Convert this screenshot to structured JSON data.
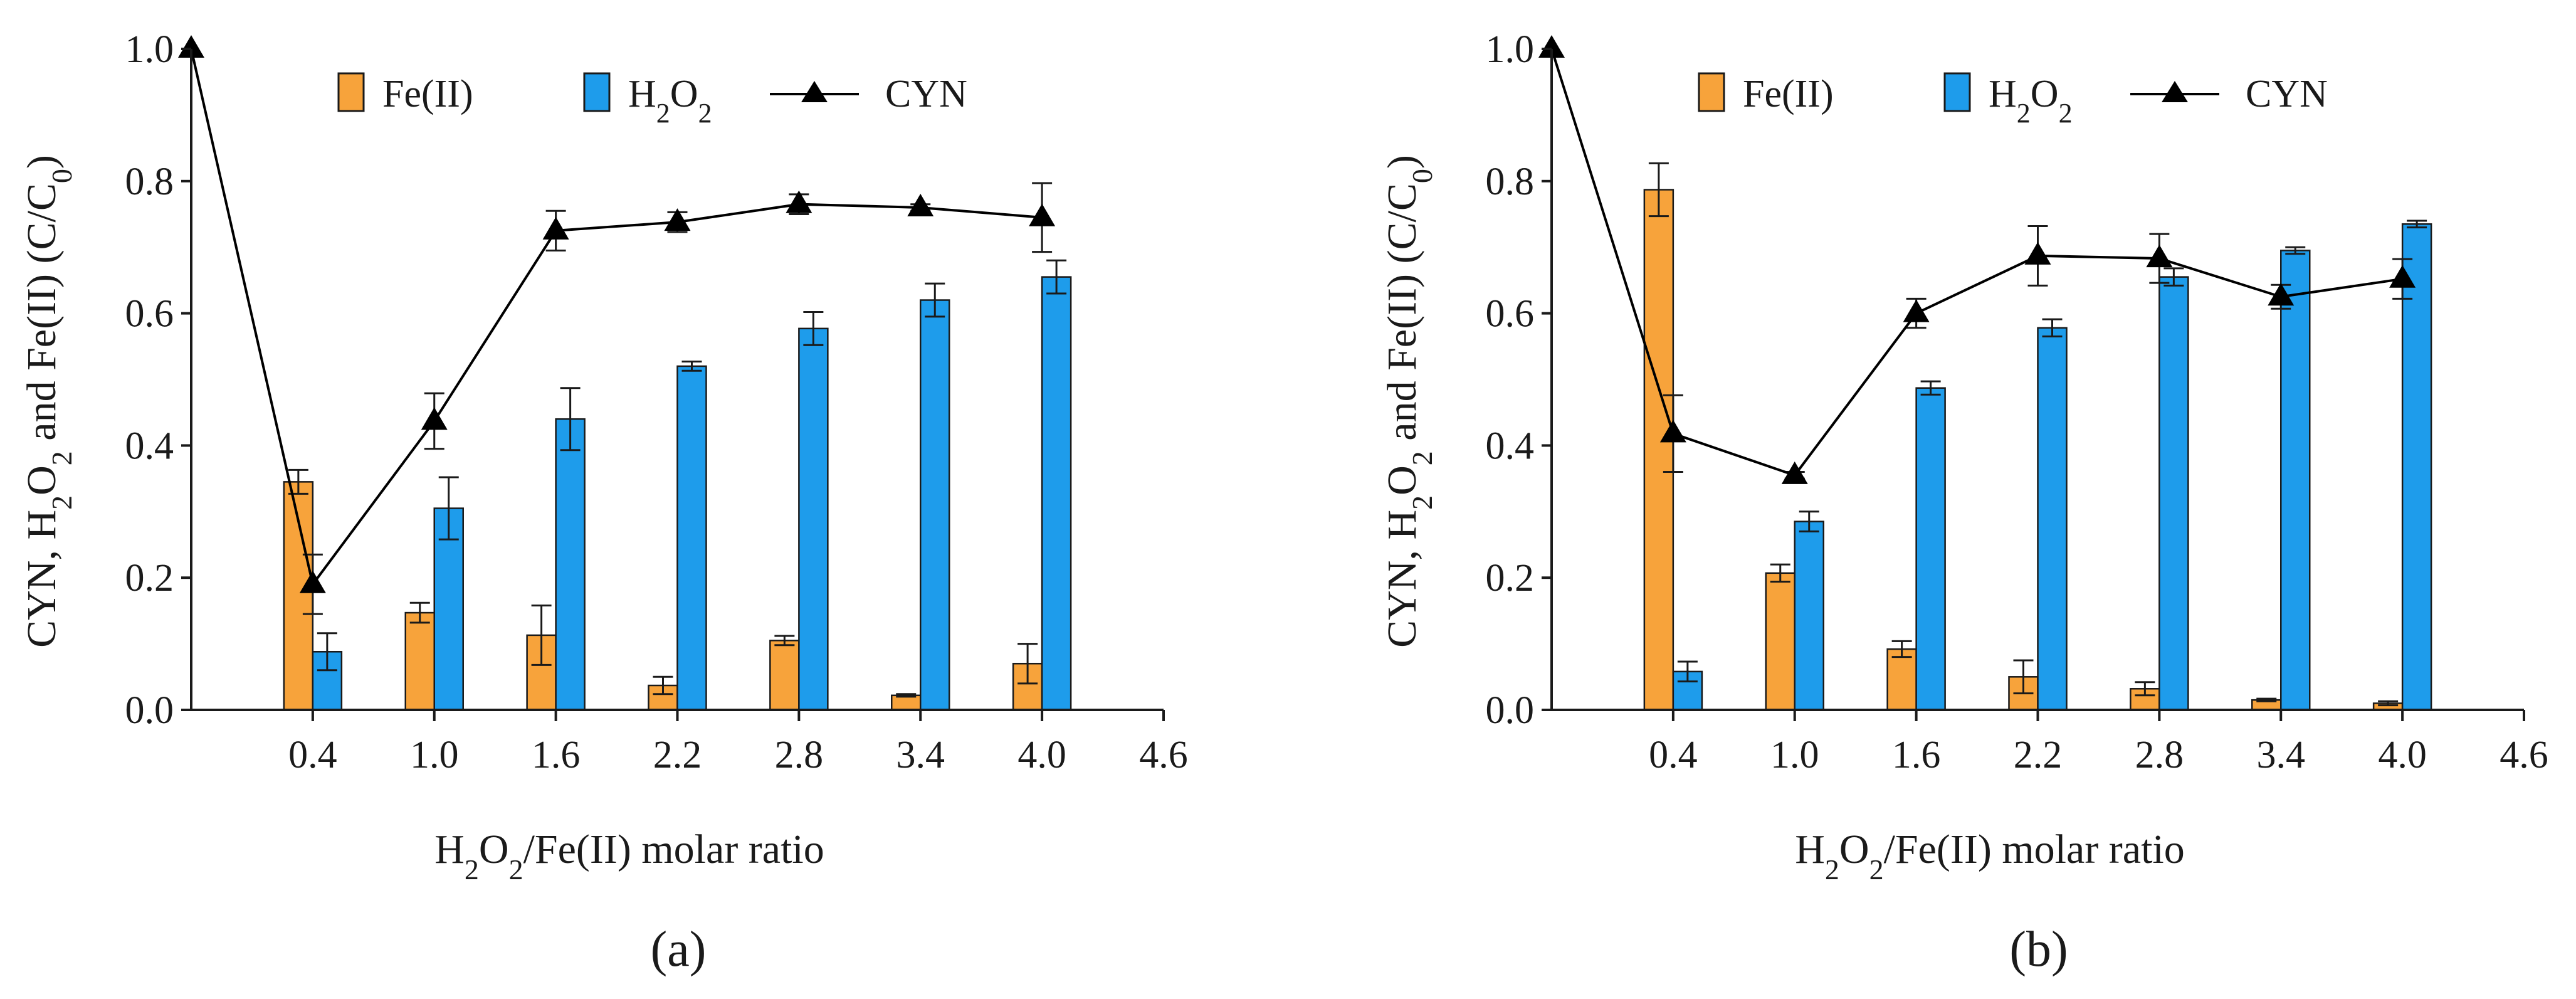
{
  "colors": {
    "fe": "#F7A33B",
    "h2o2": "#1E9CEB",
    "cyn": "#000000",
    "axis": "#1a1a1a"
  },
  "chart_data": [
    {
      "type": "bar",
      "panel_label": "(a)",
      "x_ticks": [
        "0.4",
        "1.0",
        "1.6",
        "2.2",
        "2.8",
        "3.4",
        "4.0",
        "4.6"
      ],
      "y_ticks": [
        "0.0",
        "0.2",
        "0.4",
        "0.6",
        "0.8",
        "1.0"
      ],
      "xlim": [
        -0.2,
        4.6
      ],
      "ylim": [
        0,
        1.0
      ],
      "ylabel": {
        "main": "CYN, H",
        "sub1": "2",
        "mid1": "O",
        "sub2": "2",
        "mid2": " and Fe(II) (C/C",
        "sub3": "0",
        "end": ")"
      },
      "xlabel": {
        "main": "H",
        "sub1": "2",
        "mid1": "O",
        "sub2": "2",
        "end": "/Fe(II) molar ratio"
      },
      "legend": {
        "fe": "Fe(II)",
        "h2o2_main": "H",
        "h2o2_sub1": "2",
        "h2o2_mid": "O",
        "h2o2_sub2": "2",
        "cyn": "CYN"
      },
      "categories": [
        0.4,
        1.0,
        1.6,
        2.2,
        2.8,
        3.4,
        4.0
      ],
      "series": [
        {
          "name": "Fe(II)",
          "kind": "bar",
          "values": [
            0.345,
            0.147,
            0.113,
            0.037,
            0.105,
            0.022,
            0.07
          ],
          "errors": [
            0.018,
            0.015,
            0.045,
            0.013,
            0.007,
            0.002,
            0.03
          ]
        },
        {
          "name": "H2O2",
          "kind": "bar",
          "values": [
            0.088,
            0.305,
            0.44,
            0.52,
            0.577,
            0.62,
            0.655
          ],
          "errors": [
            0.028,
            0.047,
            0.047,
            0.007,
            0.025,
            0.025,
            0.025
          ]
        },
        {
          "name": "CYN",
          "kind": "line",
          "x": [
            -0.2,
            0.4,
            1.0,
            1.6,
            2.2,
            2.8,
            3.4,
            4.0
          ],
          "values": [
            1.0,
            0.19,
            0.437,
            0.725,
            0.738,
            0.765,
            0.76,
            0.745
          ],
          "errors": [
            0,
            0.045,
            0.042,
            0.03,
            0.015,
            0.015,
            0.005,
            0.052
          ]
        }
      ]
    },
    {
      "type": "bar",
      "panel_label": "(b)",
      "x_ticks": [
        "0.4",
        "1.0",
        "1.6",
        "2.2",
        "2.8",
        "3.4",
        "4.0",
        "4.6"
      ],
      "y_ticks": [
        "0.0",
        "0.2",
        "0.4",
        "0.6",
        "0.8",
        "1.0"
      ],
      "xlim": [
        -0.2,
        4.6
      ],
      "ylim": [
        0,
        1.0
      ],
      "ylabel": {
        "main": "CYN, H",
        "sub1": "2",
        "mid1": "O",
        "sub2": "2",
        "mid2": " and Fe(II) (C/C",
        "sub3": "0",
        "end": ")"
      },
      "xlabel": {
        "main": "H",
        "sub1": "2",
        "mid1": "O",
        "sub2": "2",
        "end": "/Fe(II) molar ratio"
      },
      "legend": {
        "fe": "Fe(II)",
        "h2o2_main": "H",
        "h2o2_sub1": "2",
        "h2o2_mid": "O",
        "h2o2_sub2": "2",
        "cyn": "CYN"
      },
      "categories": [
        0.4,
        1.0,
        1.6,
        2.2,
        2.8,
        3.4,
        4.0
      ],
      "series": [
        {
          "name": "Fe(II)",
          "kind": "bar",
          "values": [
            0.787,
            0.207,
            0.092,
            0.05,
            0.032,
            0.015,
            0.01
          ],
          "errors": [
            0.04,
            0.013,
            0.012,
            0.025,
            0.01,
            0.002,
            0.003
          ]
        },
        {
          "name": "H2O2",
          "kind": "bar",
          "values": [
            0.058,
            0.285,
            0.487,
            0.578,
            0.655,
            0.695,
            0.735
          ],
          "errors": [
            0.015,
            0.015,
            0.01,
            0.013,
            0.013,
            0.005,
            0.005
          ]
        },
        {
          "name": "CYN",
          "kind": "line",
          "x": [
            -0.2,
            0.4,
            1.0,
            1.6,
            2.2,
            2.8,
            3.4,
            4.0
          ],
          "values": [
            1.0,
            0.418,
            0.355,
            0.6,
            0.687,
            0.683,
            0.625,
            0.652
          ],
          "errors": [
            0,
            0.058,
            0.005,
            0.022,
            0.045,
            0.037,
            0.018,
            0.03
          ]
        }
      ]
    }
  ]
}
